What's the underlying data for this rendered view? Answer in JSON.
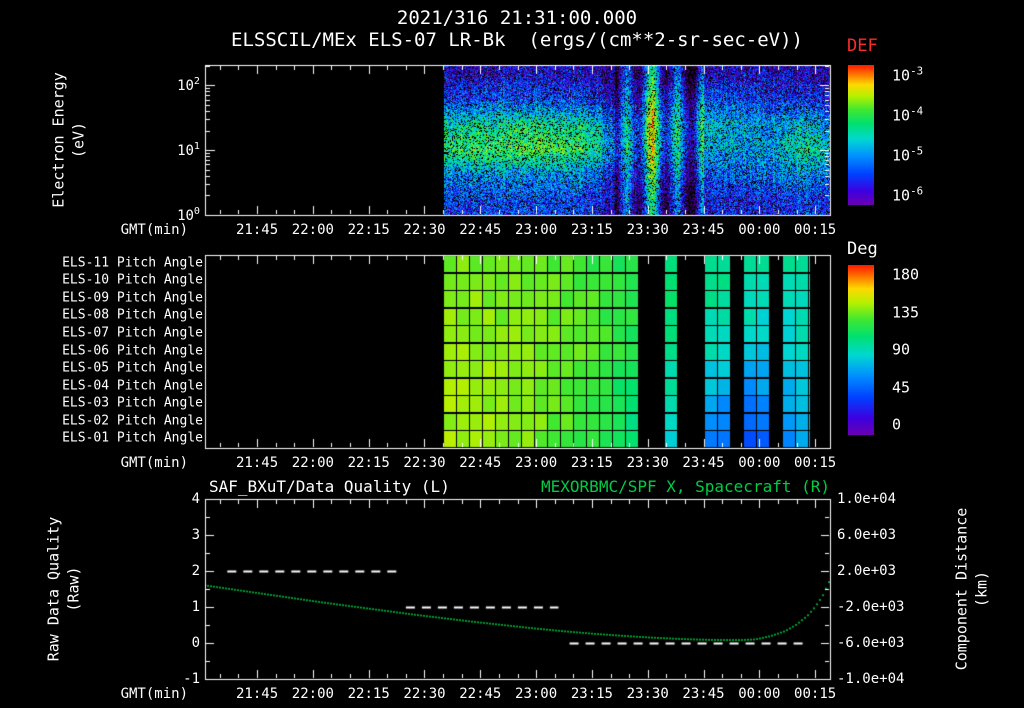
{
  "header": {
    "timestamp": "2021/316 21:31:00.000",
    "title": "ELSSCIL/MEx ELS-07 LR-Bk  (ergs/(cm**2-sr-sec-eV))"
  },
  "time_axis": {
    "label": "GMT(min)",
    "start_time": "21:31",
    "end_time": "00:19",
    "total_minutes": 168,
    "minor_tick_step": 5,
    "minor_tick_offset": 4,
    "major_ticks": [
      {
        "minute": 14,
        "label": "21:45"
      },
      {
        "minute": 29,
        "label": "22:00"
      },
      {
        "minute": 44,
        "label": "22:15"
      },
      {
        "minute": 59,
        "label": "22:30"
      },
      {
        "minute": 74,
        "label": "22:45"
      },
      {
        "minute": 89,
        "label": "23:00"
      },
      {
        "minute": 104,
        "label": "23:15"
      },
      {
        "minute": 119,
        "label": "23:30"
      },
      {
        "minute": 134,
        "label": "23:45"
      },
      {
        "minute": 149,
        "label": "00:00"
      },
      {
        "minute": 164,
        "label": "00:15"
      }
    ]
  },
  "colors": {
    "background": "#000000",
    "foreground": "#ffffff",
    "def_label": "#ff2a2a",
    "accent_green": "#00cc44",
    "colormap": [
      {
        "f": 0.0,
        "c": "#6a00b0"
      },
      {
        "f": 0.1,
        "c": "#3c00e0"
      },
      {
        "f": 0.22,
        "c": "#0040ff"
      },
      {
        "f": 0.35,
        "c": "#0090ff"
      },
      {
        "f": 0.47,
        "c": "#00d8d0"
      },
      {
        "f": 0.58,
        "c": "#00e070"
      },
      {
        "f": 0.68,
        "c": "#40e830"
      },
      {
        "f": 0.78,
        "c": "#b8f000"
      },
      {
        "f": 0.86,
        "c": "#ffd800"
      },
      {
        "f": 0.93,
        "c": "#ff7800"
      },
      {
        "f": 1.0,
        "c": "#ff1800"
      }
    ]
  },
  "spectrogram_panel": {
    "ylabel_line1": "Electron Energy",
    "ylabel_line2": "(eV)",
    "y_top_exp": 2.31,
    "yticks": [
      {
        "exp": 0,
        "label": "10^0"
      },
      {
        "exp": 1,
        "label": "10^1"
      },
      {
        "exp": 2,
        "label": "10^2"
      }
    ],
    "colorbar": {
      "title": "DEF",
      "ticks": [
        "10^-3",
        "10^-4",
        "10^-5",
        "10^-6"
      ]
    }
  },
  "pitch_panel": {
    "row_labels": [
      "ELS-11 Pitch Angle",
      "ELS-10 Pitch Angle",
      "ELS-09 Pitch Angle",
      "ELS-08 Pitch Angle",
      "ELS-07 Pitch Angle",
      "ELS-06 Pitch Angle",
      "ELS-05 Pitch Angle",
      "ELS-04 Pitch Angle",
      "ELS-03 Pitch Angle",
      "ELS-02 Pitch Angle",
      "ELS-01 Pitch Angle"
    ],
    "colorbar": {
      "title": "Deg",
      "ticks": [
        "180",
        "135",
        "90",
        "45",
        "0"
      ]
    }
  },
  "bottom_panel": {
    "title_left": "SAF_BXuT/Data Quality (L)",
    "title_right": "MEXORBMC/SPF X, Spacecraft (R)",
    "ylabel_left_line1": "Raw Data Quality",
    "ylabel_left_line2": "(Raw)",
    "ylabel_right_line1": "Component Distance",
    "ylabel_right_line2": "(km)",
    "yticks_left": [
      4,
      3,
      2,
      1,
      0,
      -1
    ],
    "yticks_right": [
      "1.0e+04",
      "6.0e+03",
      "2.0e+03",
      "-2.0e+03",
      "-6.0e+03",
      "-1.0e+04"
    ],
    "ylim_left": [
      -1,
      4
    ],
    "ylim_right_km": [
      -10000,
      10000
    ]
  },
  "chart_data": [
    {
      "type": "heatmap",
      "name": "electron-energy-spectrogram",
      "title": "ELSSCIL/MEx ELS-07 LR-Bk",
      "units": "ergs/(cm**2-sr-sec-eV)",
      "x_axis": "GMT 21:31 to 00:19",
      "y_scale": "log",
      "y_range_log10_eV": [
        0,
        2.31
      ],
      "value_log10_range": [
        -6,
        -3
      ],
      "data_start_minute": 64,
      "time_grid_minutes": [
        64,
        72,
        80,
        88,
        96,
        104,
        112,
        120,
        128,
        136,
        144,
        152,
        160,
        168
      ],
      "energy_grid_log10_eV": [
        0.2,
        0.6,
        1.0,
        1.4,
        1.8,
        2.2
      ],
      "log10_flux": [
        [
          -5.3,
          -5.0,
          -4.15,
          -4.5,
          -5.3,
          -5.7
        ],
        [
          -5.3,
          -4.95,
          -4.05,
          -4.45,
          -5.35,
          -5.7
        ],
        [
          -5.25,
          -4.9,
          -4.1,
          -4.35,
          -5.25,
          -5.6
        ],
        [
          -5.3,
          -5.0,
          -4.0,
          -4.3,
          -5.3,
          -5.65
        ],
        [
          -5.25,
          -4.9,
          -4.1,
          -4.35,
          -5.25,
          -5.6
        ],
        [
          -5.4,
          -5.1,
          -4.25,
          -4.5,
          -5.4,
          -5.7
        ],
        [
          -5.9,
          -5.7,
          -5.3,
          -5.4,
          -5.8,
          -6.0
        ],
        [
          -5.0,
          -4.6,
          -4.2,
          -4.1,
          -4.5,
          -5.0
        ],
        [
          -5.9,
          -5.6,
          -5.3,
          -5.2,
          -5.6,
          -6.0
        ],
        [
          -5.5,
          -5.2,
          -4.8,
          -4.6,
          -5.2,
          -5.7
        ],
        [
          -5.5,
          -5.2,
          -4.9,
          -4.8,
          -5.3,
          -5.7
        ],
        [
          -5.45,
          -5.1,
          -4.85,
          -4.9,
          -5.4,
          -5.7
        ],
        [
          -5.35,
          -4.95,
          -4.35,
          -4.7,
          -5.4,
          -5.7
        ],
        [
          -5.4,
          -5.1,
          -4.6,
          -4.9,
          -5.5,
          -5.8
        ]
      ],
      "stripe_region_minutes": [
        110,
        134
      ],
      "stripe_period_minutes": 7,
      "stripe_amplitude": 0.75,
      "noise_amplitude": 0.55
    },
    {
      "type": "heatmap",
      "name": "pitch-angle-panels",
      "units": "deg",
      "value_range": [
        0,
        180
      ],
      "data_start_minute": 64,
      "data_end_minute": 162.5,
      "cell_minutes": 3.5,
      "time_grid_minutes": [
        64,
        72,
        80,
        88,
        96,
        104,
        112,
        120,
        128,
        136,
        144,
        152,
        160,
        168
      ],
      "rows": [
        "ELS-11",
        "ELS-10",
        "ELS-09",
        "ELS-08",
        "ELS-07",
        "ELS-06",
        "ELS-05",
        "ELS-04",
        "ELS-03",
        "ELS-02",
        "ELS-01"
      ],
      "pitch_deg": [
        [
          128,
          130,
          128,
          126,
          124,
          120,
          115,
          110,
          105,
          100,
          95,
          92,
          95,
          100
        ],
        [
          130,
          132,
          130,
          128,
          126,
          122,
          116,
          110,
          104,
          98,
          94,
          90,
          94,
          100
        ],
        [
          132,
          133,
          131,
          129,
          127,
          123,
          117,
          110,
          103,
          96,
          92,
          88,
          92,
          99
        ],
        [
          133,
          134,
          132,
          130,
          128,
          124,
          117,
          109,
          101,
          94,
          89,
          86,
          90,
          98
        ],
        [
          134,
          135,
          133,
          131,
          128,
          124,
          116,
          108,
          99,
          91,
          85,
          82,
          88,
          96
        ],
        [
          134,
          135,
          133,
          131,
          128,
          123,
          115,
          106,
          96,
          87,
          80,
          78,
          85,
          95
        ],
        [
          135,
          136,
          134,
          131,
          128,
          122,
          113,
          103,
          92,
          82,
          73,
          72,
          82,
          93
        ],
        [
          135,
          136,
          134,
          131,
          127,
          121,
          111,
          100,
          88,
          76,
          66,
          66,
          78,
          91
        ],
        [
          136,
          136,
          134,
          131,
          127,
          120,
          109,
          97,
          84,
          70,
          58,
          60,
          74,
          89
        ],
        [
          136,
          137,
          134,
          131,
          126,
          119,
          107,
          94,
          79,
          63,
          50,
          54,
          70,
          87
        ],
        [
          136,
          137,
          134,
          130,
          125,
          117,
          105,
          91,
          74,
          56,
          44,
          48,
          66,
          85
        ]
      ],
      "dropout_minutes": [
        [
          118,
          123
        ],
        [
          128,
          134
        ],
        [
          140.5,
          144.5
        ],
        [
          151.5,
          155.5
        ]
      ]
    },
    {
      "type": "line",
      "name": "quality-and-orbit",
      "series": [
        {
          "name": "SAF_BXuT/Data Quality (L)",
          "axis": "left",
          "style": "dashed",
          "color": "#ffffff",
          "segments": [
            {
              "start_minute": 6,
              "end_minute": 52,
              "value": 2
            },
            {
              "start_minute": 54,
              "end_minute": 95,
              "value": 1
            },
            {
              "start_minute": 98,
              "end_minute": 162,
              "value": 0
            }
          ]
        },
        {
          "name": "MEXORBMC/SPF X, Spacecraft (R)",
          "axis": "right",
          "style": "dotted",
          "color": "#00bb3c",
          "points_minute_km": [
            [
              0,
              400
            ],
            [
              8,
              -80
            ],
            [
              16,
              -560
            ],
            [
              24,
              -1040
            ],
            [
              32,
              -1520
            ],
            [
              40,
              -1960
            ],
            [
              48,
              -2400
            ],
            [
              56,
              -2840
            ],
            [
              64,
              -3240
            ],
            [
              72,
              -3640
            ],
            [
              80,
              -4000
            ],
            [
              88,
              -4360
            ],
            [
              96,
              -4680
            ],
            [
              104,
              -4960
            ],
            [
              112,
              -5200
            ],
            [
              120,
              -5400
            ],
            [
              128,
              -5560
            ],
            [
              136,
              -5660
            ],
            [
              144,
              -5680
            ],
            [
              148,
              -5600
            ],
            [
              152,
              -5240
            ],
            [
              156,
              -4680
            ],
            [
              159,
              -3960
            ],
            [
              162,
              -2960
            ],
            [
              164,
              -2000
            ],
            [
              166,
              -800
            ],
            [
              168,
              1000
            ]
          ]
        }
      ]
    }
  ]
}
